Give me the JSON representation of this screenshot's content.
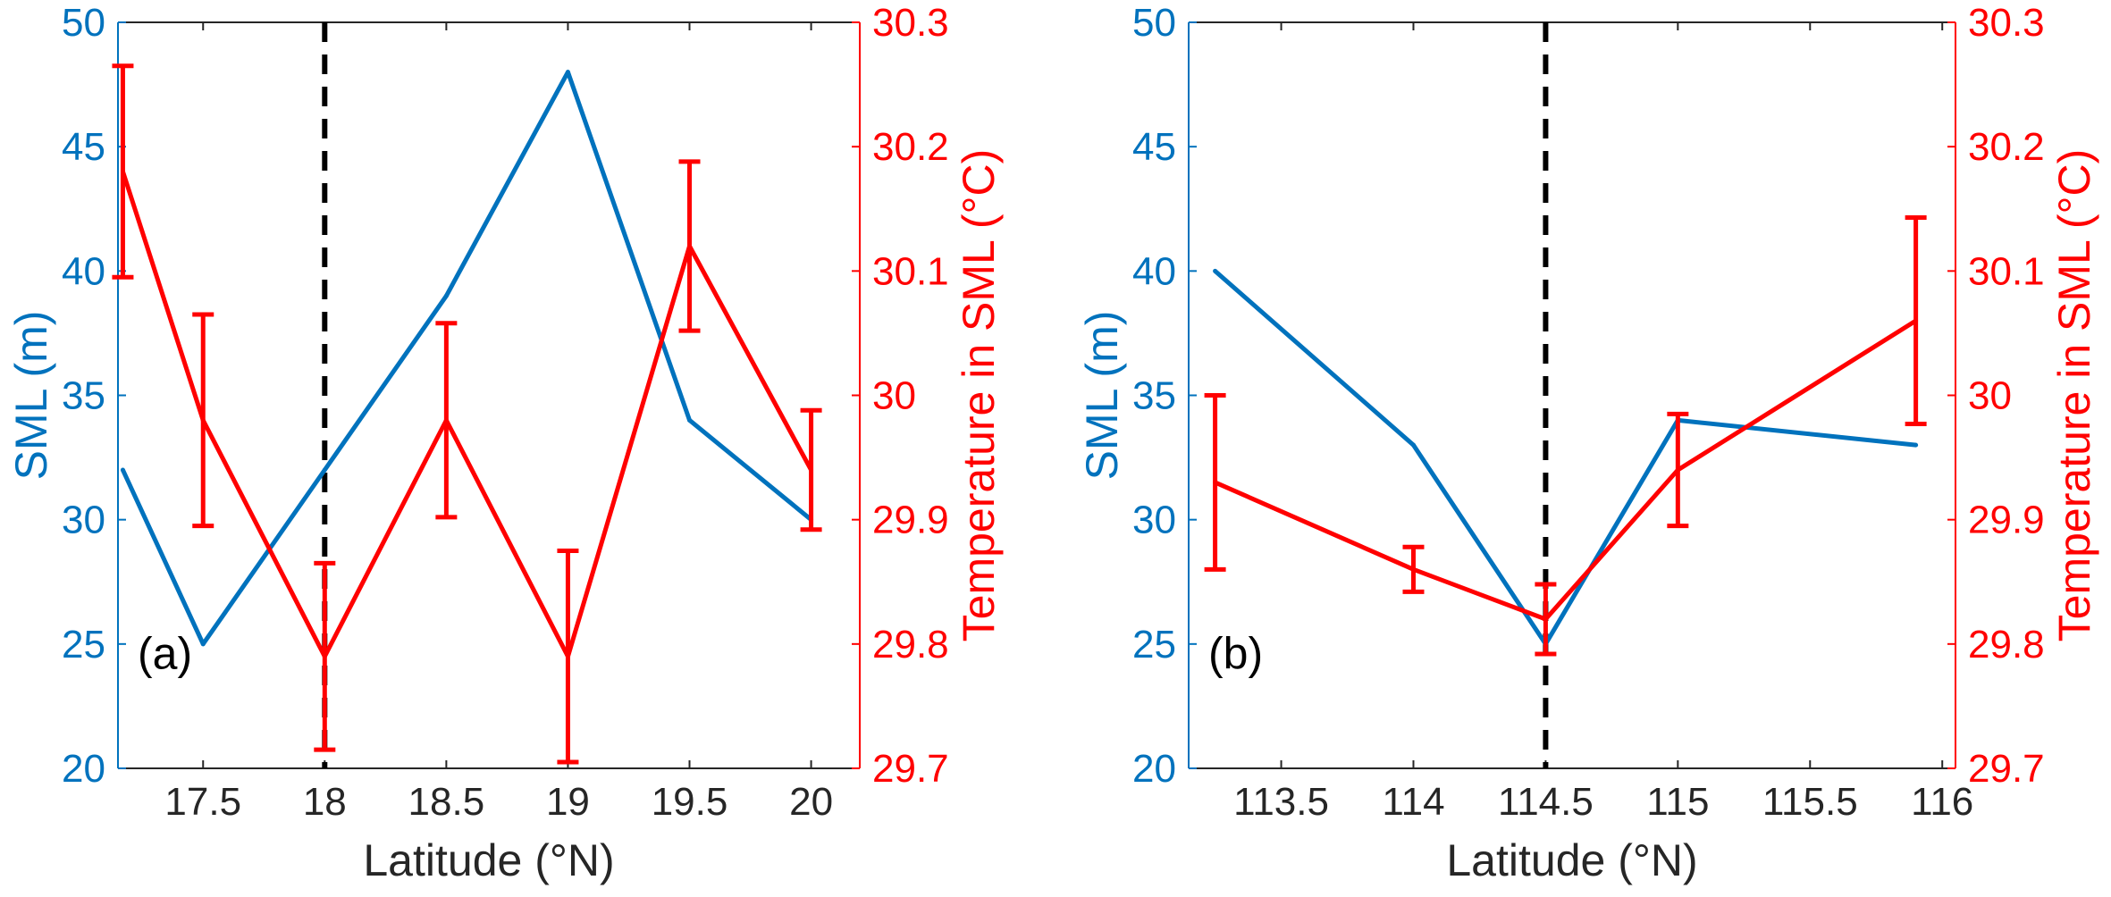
{
  "colors": {
    "sml": "#0072BD",
    "temperature": "#FF0000",
    "marker": "#000000",
    "axis": "#262626"
  },
  "chart_data": [
    {
      "type": "line",
      "panel_label": "(a)",
      "xlabel": "Latitude (°N)",
      "ylabel_left": "SML (m)",
      "ylabel_right": "Temperature in SML (°C)",
      "xlim": [
        17.15,
        20.2
      ],
      "xticks": [
        17.5,
        18,
        18.5,
        19,
        19.5,
        20
      ],
      "xtick_labels": [
        "17.5",
        "18",
        "18.5",
        "19",
        "19.5",
        "20"
      ],
      "ylim_left": [
        20,
        50
      ],
      "yticks_left": [
        20,
        25,
        30,
        35,
        40,
        45,
        50
      ],
      "ytick_labels_left": [
        "20",
        "25",
        "30",
        "35",
        "40",
        "45",
        "50"
      ],
      "ylim_right": [
        29.7,
        30.3
      ],
      "yticks_right": [
        29.7,
        29.8,
        29.9,
        30,
        30.1,
        30.2,
        30.3
      ],
      "ytick_labels_right": [
        "29.7",
        "29.8",
        "29.9",
        "30",
        "30.1",
        "30.2",
        "30.3"
      ],
      "marker_x": 18,
      "series": [
        {
          "name": "SML",
          "axis": "left",
          "x": [
            17.17,
            17.5,
            18,
            18.5,
            19,
            19.5,
            20
          ],
          "values": [
            32,
            25,
            32,
            39,
            48,
            34,
            30
          ]
        },
        {
          "name": "Temperature in SML",
          "axis": "right",
          "x": [
            17.17,
            17.5,
            18,
            18.5,
            19,
            19.5,
            20
          ],
          "values": [
            30.18,
            29.98,
            29.79,
            29.98,
            29.79,
            30.12,
            29.94
          ],
          "error": [
            0.085,
            0.085,
            0.075,
            0.078,
            0.085,
            0.068,
            0.048
          ]
        }
      ]
    },
    {
      "type": "line",
      "panel_label": "(b)",
      "xlabel": "Latitude (°N)",
      "ylabel_left": "SML (m)",
      "ylabel_right": "Temperature in SML (°C)",
      "xlim": [
        113.15,
        116.05
      ],
      "xticks": [
        113.5,
        114,
        114.5,
        115,
        115.5,
        116
      ],
      "xtick_labels": [
        "113.5",
        "114",
        "114.5",
        "115",
        "115.5",
        "116"
      ],
      "ylim_left": [
        20,
        50
      ],
      "yticks_left": [
        20,
        25,
        30,
        35,
        40,
        45,
        50
      ],
      "ytick_labels_left": [
        "20",
        "25",
        "30",
        "35",
        "40",
        "45",
        "50"
      ],
      "ylim_right": [
        29.7,
        30.3
      ],
      "yticks_right": [
        29.7,
        29.8,
        29.9,
        30,
        30.1,
        30.2,
        30.3
      ],
      "ytick_labels_right": [
        "29.7",
        "29.8",
        "29.9",
        "30",
        "30.1",
        "30.2",
        "30.3"
      ],
      "marker_x": 114.5,
      "series": [
        {
          "name": "SML",
          "axis": "left",
          "x": [
            113.25,
            114,
            114.5,
            115,
            115.9
          ],
          "values": [
            40,
            33,
            25,
            34,
            33
          ]
        },
        {
          "name": "Temperature in SML",
          "axis": "right",
          "x": [
            113.25,
            114,
            114.5,
            115,
            115.9
          ],
          "values": [
            29.93,
            29.86,
            29.82,
            29.94,
            30.06
          ],
          "error": [
            0.07,
            0.018,
            0.028,
            0.045,
            0.083
          ]
        }
      ]
    }
  ]
}
